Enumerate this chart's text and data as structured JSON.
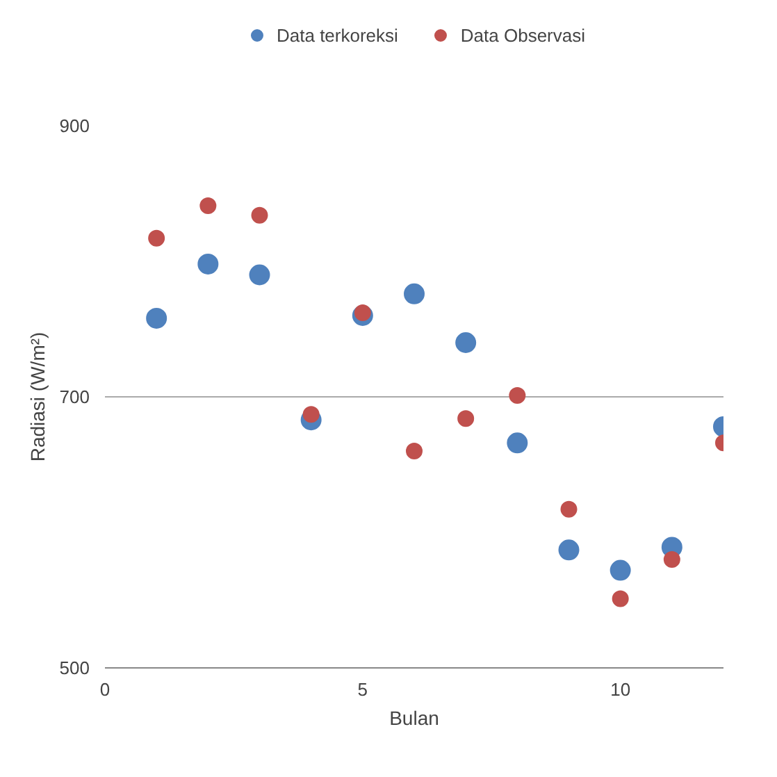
{
  "chart_data": {
    "type": "scatter",
    "xlabel": "Bulan",
    "ylabel": "Radiasi (W/m²)",
    "x": [
      1,
      2,
      3,
      4,
      5,
      6,
      7,
      8,
      9,
      10,
      11,
      12
    ],
    "series": [
      {
        "name": "Data terkoreksi",
        "color": "#4f81bd",
        "values": [
          758,
          798,
          790,
          683,
          760,
          776,
          740,
          666,
          587,
          572,
          589,
          678
        ]
      },
      {
        "name": "Data Observasi",
        "color": "#c0504d",
        "values": [
          817,
          841,
          834,
          687,
          762,
          660,
          684,
          701,
          617,
          551,
          580,
          666
        ]
      }
    ],
    "xlim": [
      0,
      12
    ],
    "xticks": [
      0,
      5,
      10
    ],
    "ylim": [
      500,
      900
    ],
    "yticks": [
      500,
      700,
      900
    ],
    "grid": "y",
    "legend": "top",
    "marker": "circle"
  }
}
